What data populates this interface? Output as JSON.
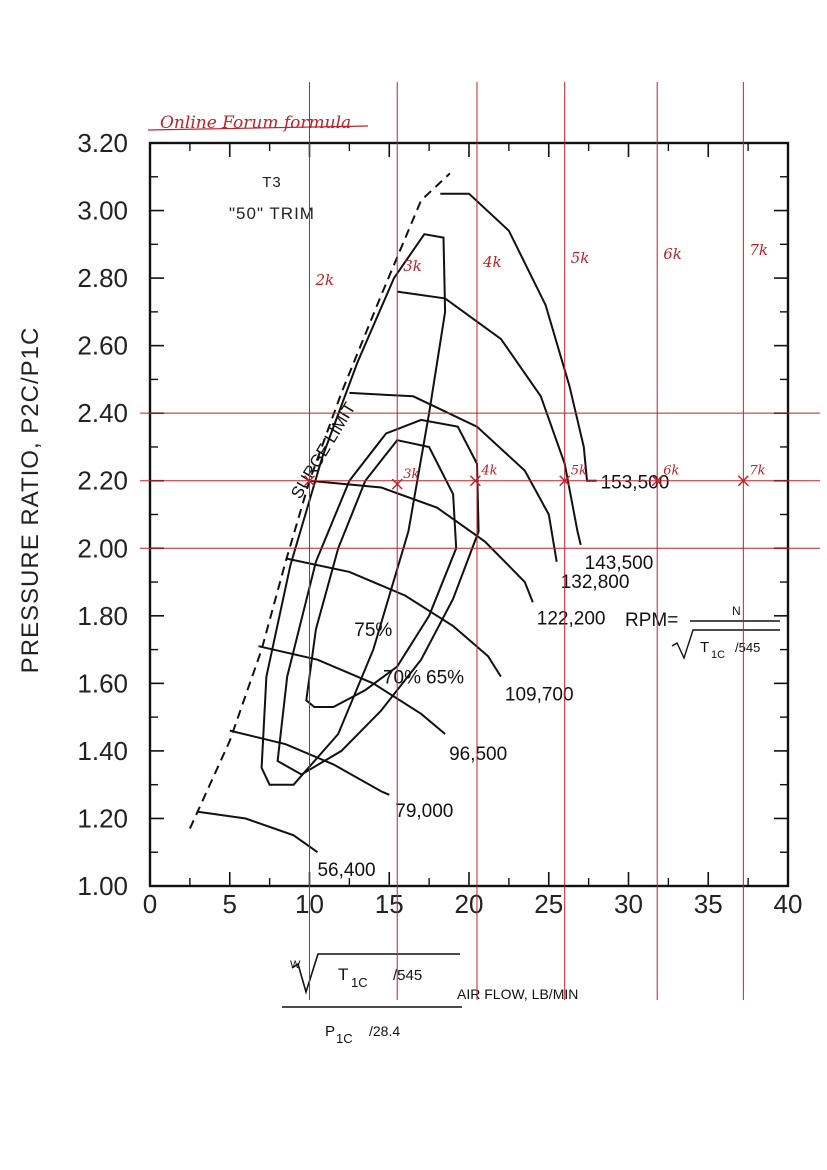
{
  "chart_data": {
    "type": "line",
    "title": "T3",
    "subtitle": "\"50\" TRIM",
    "ylabel": "PRESSURE RATIO, P2C/P1C",
    "xlabel": {
      "numerator_symbol": "W",
      "numerator_radicand": "T",
      "numerator_sub": "1C",
      "numerator_rest": "/545",
      "denominator": "P",
      "denominator_sub": "1C",
      "denominator_rest": "/28.4",
      "suffix": "AIR FLOW, LB/MIN"
    },
    "xlim": [
      0,
      40
    ],
    "ylim": [
      1.0,
      3.2
    ],
    "xticks": [
      "0",
      "5",
      "10",
      "15",
      "20",
      "25",
      "30",
      "35",
      "40"
    ],
    "yticks": [
      "1.00",
      "1.20",
      "1.40",
      "1.60",
      "1.80",
      "2.00",
      "2.20",
      "2.40",
      "2.60",
      "2.80",
      "3.00",
      "3.20"
    ],
    "surge_limit_label": "SURGE LIMIT",
    "surge_line": [
      [
        2.5,
        1.17
      ],
      [
        5.0,
        1.43
      ],
      [
        7.0,
        1.7
      ],
      [
        8.5,
        1.96
      ],
      [
        10.0,
        2.2
      ],
      [
        12.0,
        2.46
      ],
      [
        14.5,
        2.75
      ],
      [
        17.0,
        3.03
      ],
      [
        18.8,
        3.11
      ]
    ],
    "speed_lines": [
      {
        "name": "56,400",
        "points": [
          [
            3.0,
            1.22
          ],
          [
            6.0,
            1.2
          ],
          [
            9.0,
            1.15
          ],
          [
            10.5,
            1.1
          ]
        ]
      },
      {
        "name": "79,000",
        "points": [
          [
            5.0,
            1.46
          ],
          [
            8.5,
            1.42
          ],
          [
            11.5,
            1.36
          ],
          [
            14.5,
            1.28
          ],
          [
            15.0,
            1.27
          ]
        ]
      },
      {
        "name": "96,500",
        "points": [
          [
            6.8,
            1.71
          ],
          [
            10.5,
            1.67
          ],
          [
            14.0,
            1.6
          ],
          [
            17.0,
            1.51
          ],
          [
            18.5,
            1.45
          ]
        ]
      },
      {
        "name": "109,700",
        "points": [
          [
            8.5,
            1.97
          ],
          [
            12.5,
            1.93
          ],
          [
            16.0,
            1.86
          ],
          [
            19.0,
            1.77
          ],
          [
            21.2,
            1.68
          ],
          [
            22.0,
            1.62
          ]
        ]
      },
      {
        "name": "122,200",
        "points": [
          [
            10.0,
            2.2
          ],
          [
            14.5,
            2.18
          ],
          [
            18.0,
            2.12
          ],
          [
            21.0,
            2.02
          ],
          [
            23.5,
            1.9
          ],
          [
            24.0,
            1.84
          ]
        ]
      },
      {
        "name": "132,800",
        "points": [
          [
            12.5,
            2.46
          ],
          [
            16.5,
            2.45
          ],
          [
            20.5,
            2.36
          ],
          [
            23.5,
            2.23
          ],
          [
            25.0,
            2.1
          ],
          [
            25.5,
            1.96
          ]
        ]
      },
      {
        "name": "143,500",
        "points": [
          [
            15.5,
            2.76
          ],
          [
            18.5,
            2.74
          ],
          [
            22.0,
            2.62
          ],
          [
            24.5,
            2.45
          ],
          [
            26.0,
            2.25
          ],
          [
            26.8,
            2.05
          ],
          [
            27.0,
            2.01
          ]
        ]
      },
      {
        "name": "153,500",
        "points": [
          [
            18.2,
            3.05
          ],
          [
            20.0,
            3.05
          ],
          [
            22.5,
            2.94
          ],
          [
            24.8,
            2.72
          ],
          [
            26.3,
            2.48
          ],
          [
            27.2,
            2.3
          ],
          [
            27.4,
            2.2
          ],
          [
            28.0,
            2.2
          ]
        ]
      }
    ],
    "efficiency_islands": [
      {
        "name": "75%",
        "points": [
          [
            9.8,
            1.55
          ],
          [
            10.4,
            1.76
          ],
          [
            11.8,
            2.0
          ],
          [
            13.5,
            2.2
          ],
          [
            15.5,
            2.32
          ],
          [
            17.5,
            2.3
          ],
          [
            19.0,
            2.16
          ],
          [
            19.2,
            2.0
          ],
          [
            17.5,
            1.8
          ],
          [
            15.5,
            1.65
          ],
          [
            13.5,
            1.58
          ],
          [
            11.5,
            1.53
          ],
          [
            10.3,
            1.53
          ],
          [
            9.8,
            1.55
          ]
        ]
      },
      {
        "name": "70%",
        "points": [
          [
            8.0,
            1.37
          ],
          [
            8.6,
            1.62
          ],
          [
            10.4,
            1.96
          ],
          [
            12.5,
            2.2
          ],
          [
            14.8,
            2.34
          ],
          [
            17.0,
            2.38
          ],
          [
            19.3,
            2.36
          ],
          [
            20.5,
            2.25
          ],
          [
            20.6,
            2.05
          ],
          [
            19.0,
            1.85
          ],
          [
            17.0,
            1.67
          ],
          [
            14.5,
            1.52
          ],
          [
            12.0,
            1.4
          ],
          [
            9.5,
            1.33
          ],
          [
            8.0,
            1.37
          ]
        ]
      },
      {
        "name": "65%",
        "points": [
          [
            7.0,
            1.35
          ],
          [
            7.3,
            1.62
          ],
          [
            8.8,
            1.95
          ],
          [
            10.8,
            2.27
          ],
          [
            13.0,
            2.55
          ],
          [
            15.3,
            2.8
          ],
          [
            17.2,
            2.93
          ],
          [
            18.4,
            2.92
          ],
          [
            18.5,
            2.7
          ],
          [
            17.5,
            2.4
          ],
          [
            16.2,
            2.05
          ],
          [
            14.0,
            1.7
          ],
          [
            11.8,
            1.45
          ],
          [
            9.0,
            1.3
          ],
          [
            7.5,
            1.3
          ],
          [
            7.0,
            1.35
          ]
        ]
      }
    ],
    "efficiency_label_positions": [
      [
        14.0,
        1.74
      ],
      [
        15.8,
        1.6
      ],
      [
        18.5,
        1.6
      ]
    ],
    "rpm_formula": {
      "lhs": "RPM=",
      "numerator": "N",
      "denominator": "T",
      "denominator_sub": "1C",
      "denominator_rest": "/545"
    },
    "annotations": {
      "header_note": "Online Forum formula",
      "rpm_marks": [
        "2k",
        "3k",
        "4k",
        "5k",
        "6k",
        "7k"
      ],
      "rpm_mark_flow": [
        10.0,
        15.5,
        20.5,
        26.0,
        31.8,
        37.2
      ],
      "marker_labels": [
        "3k",
        "4k",
        "5k",
        "6k",
        "7k"
      ],
      "marker_points": [
        [
          10.0,
          2.2
        ],
        [
          15.5,
          2.19
        ],
        [
          20.4,
          2.2
        ],
        [
          26.0,
          2.2
        ],
        [
          31.8,
          2.2
        ],
        [
          37.2,
          2.2
        ]
      ],
      "reference_pressure_ratios": [
        2.4,
        2.2,
        2.0
      ],
      "ink_color": "#c0202a"
    },
    "grid": false,
    "line_color": "#111111"
  }
}
